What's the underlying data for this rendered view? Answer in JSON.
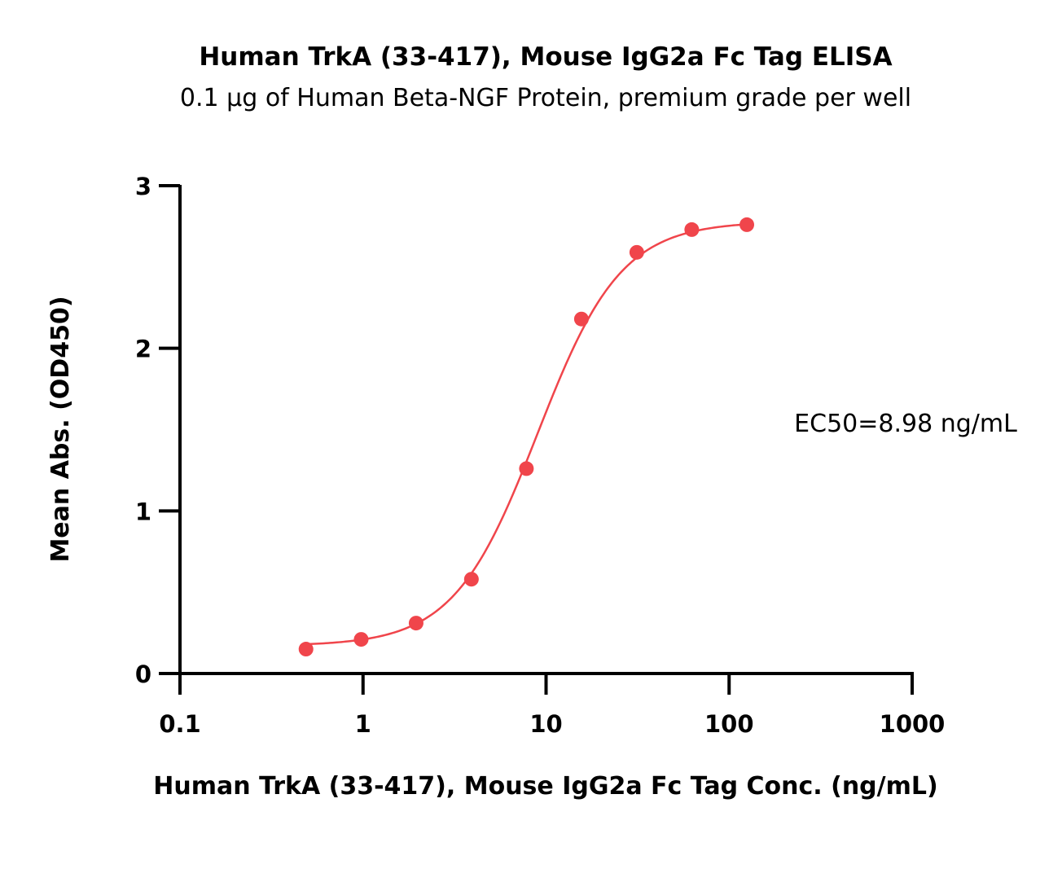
{
  "chart_data": {
    "type": "scatter",
    "title": "Human TrkA (33-417), Mouse IgG2a Fc Tag ELISA",
    "subtitle": "0.1 µg of Human Beta-NGF Protein, premium grade per well",
    "xlabel": "Human TrkA (33-417), Mouse IgG2a Fc Tag Conc. (ng/mL)",
    "ylabel": "Mean Abs. (OD450)",
    "x_scale": "log",
    "xlim": [
      0.1,
      1000
    ],
    "ylim": [
      0,
      3
    ],
    "x_ticks": [
      0.1,
      1,
      10,
      100,
      1000
    ],
    "x_tick_labels": [
      "0.1",
      "1",
      "10",
      "100",
      "1000"
    ],
    "y_ticks": [
      0,
      1,
      2,
      3
    ],
    "y_tick_labels": [
      "0",
      "1",
      "2",
      "3"
    ],
    "grid": false,
    "legend": "none",
    "series": [
      {
        "color": "#f0454b",
        "x": [
          0.488,
          0.977,
          1.95,
          3.91,
          7.81,
          15.6,
          31.3,
          62.5,
          125
        ],
        "y": [
          0.15,
          0.21,
          0.31,
          0.58,
          1.26,
          2.18,
          2.59,
          2.73,
          2.76
        ]
      }
    ],
    "fit": {
      "type": "4PL",
      "bottom": 0.17,
      "top": 2.78,
      "ec50": 8.98,
      "hill": 1.9,
      "color": "#f0454b"
    },
    "annotations": [
      {
        "text": "EC50=8.98 ng/mL"
      }
    ]
  }
}
